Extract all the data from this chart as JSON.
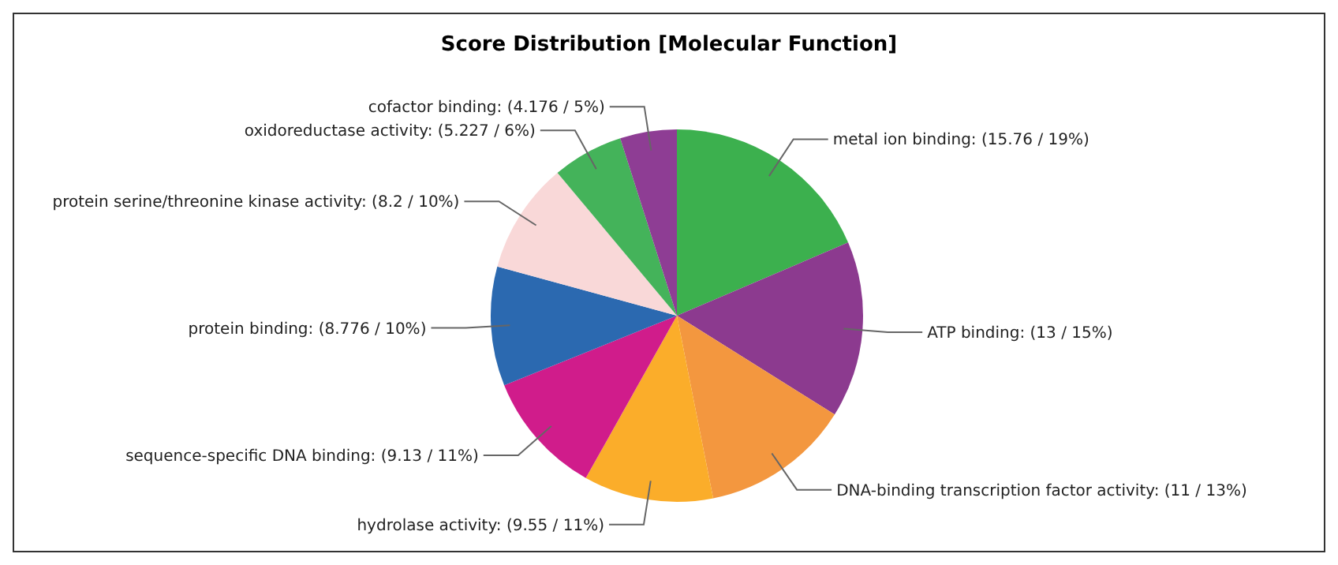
{
  "chart_data": {
    "type": "pie",
    "title": "Score Distribution [Molecular Function]",
    "categories": [
      "metal ion binding",
      "ATP binding",
      "DNA-binding transcription factor activity",
      "hydrolase activity",
      "sequence-specific DNA binding",
      "protein binding",
      "protein serine/threonine kinase activity",
      "oxidoreductase activity",
      "cofactor binding"
    ],
    "values": [
      15.76,
      13,
      11,
      9.55,
      9.13,
      8.776,
      8.2,
      5.227,
      4.176
    ],
    "value_labels": [
      "(15.76 / 19%)",
      "(13 / 15%)",
      "(11 / 13%)",
      "(9.55 / 11%)",
      "(9.13 / 11%)",
      "(8.776 / 10%)",
      "(8.2 / 10%)",
      "(5.227 / 6%)",
      "(4.176 / 5%)"
    ],
    "colors": [
      "#3cb04e",
      "#8c3a8f",
      "#f3973f",
      "#fbad2a",
      "#d01c8b",
      "#2b69b0",
      "#f9d8d8",
      "#44b35a",
      "#8e3d94"
    ]
  }
}
